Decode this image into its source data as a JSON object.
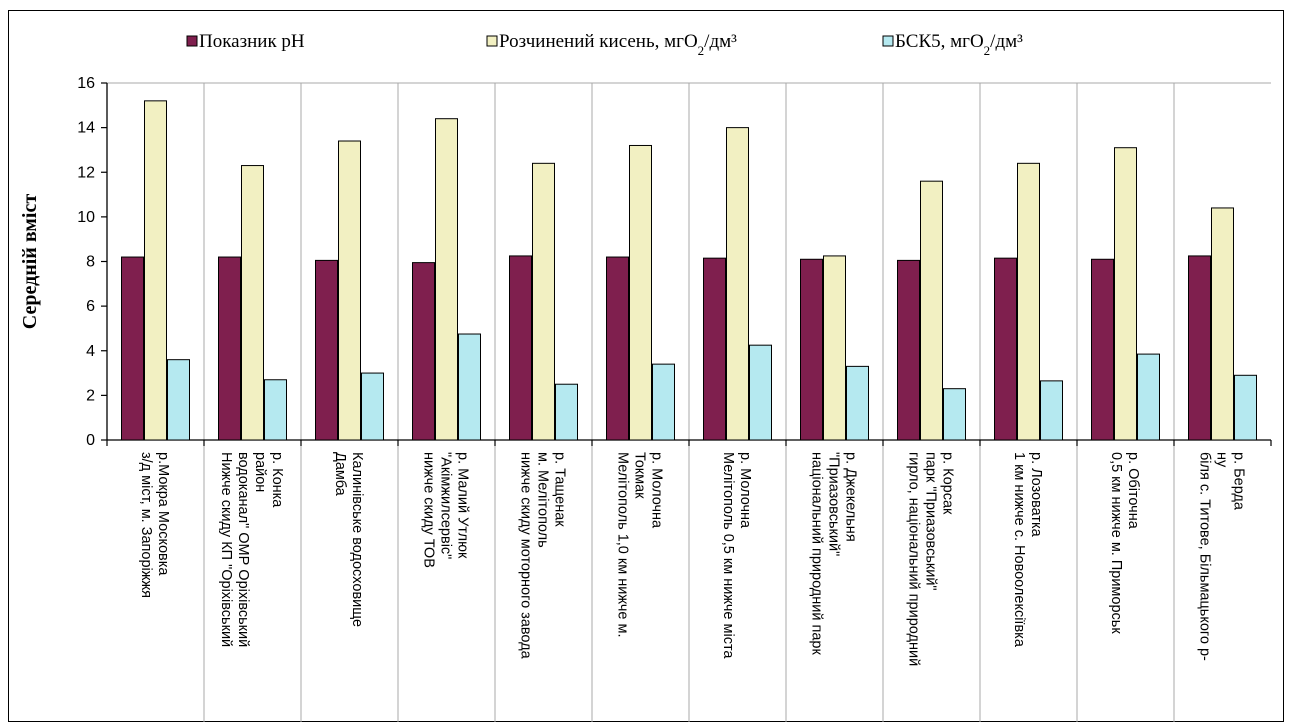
{
  "chart_data": {
    "type": "bar",
    "ylabel": "Середній вміст",
    "ylim": [
      0,
      16
    ],
    "yticks": [
      "0",
      "2",
      "4",
      "6",
      "8",
      "10",
      "12",
      "14",
      "16"
    ],
    "grid": false,
    "legend_position": "top",
    "categories": [
      [
        "з/д міст, м. Запоріжжя",
        "р.Мокра Московка"
      ],
      [
        "Нижче скиду КП \"Оріхівський",
        "водоканал\" ОМР Оріхівський",
        "район",
        "р. Конка"
      ],
      [
        "Дамба",
        "Калинівське водосховище"
      ],
      [
        "нижче скиду ТОВ",
        "\"Акімжилсервіс\"",
        "р. Малий Утлюк"
      ],
      [
        "нижче скиду моторного завода",
        "м. Мелітополь",
        "р. Тащенак"
      ],
      [
        "Мелітополь 1,0 км нижче м.",
        "Токмак",
        "р. Молочна"
      ],
      [
        "Мелітополь 0,5 км нижче міста",
        "р. Молочна"
      ],
      [
        "національний природний парк",
        "\"Приазовський\"",
        "р. Джекельня"
      ],
      [
        "гирло, національний природний",
        "парк \"Приазовський\"",
        "р. Корсак"
      ],
      [
        "1 км нижче с. Новоолексіївка",
        "р. Лозоватка"
      ],
      [
        "0,5 км нижче м. Приморськ",
        "р. Обіточна"
      ],
      [
        "біля с. Титове, Більмацького р-",
        "ну",
        "р. Берда"
      ]
    ],
    "series": [
      {
        "name": "Показник рН",
        "legend_main": "Показник рН",
        "legend_sub": "",
        "legend_tail": "",
        "color": "#7f1f4e",
        "values": [
          8.2,
          8.2,
          8.05,
          7.95,
          8.25,
          8.2,
          8.15,
          8.1,
          8.05,
          8.15,
          8.1,
          8.25
        ]
      },
      {
        "name": "Розчинений кисень, мгО2/дм³",
        "legend_main": "Розчинений кисень, мгО",
        "legend_sub": "2",
        "legend_tail": "/дм³",
        "color": "#f2f0c2",
        "values": [
          15.2,
          12.3,
          13.4,
          14.4,
          12.4,
          13.2,
          14.0,
          8.25,
          11.6,
          12.4,
          13.1,
          10.4
        ]
      },
      {
        "name": "БСК5, мгО2/дм³",
        "legend_main": "БСК5,  мгО",
        "legend_sub": "2",
        "legend_tail": "/дм³",
        "color": "#b5e9f0",
        "values": [
          3.6,
          2.7,
          3.0,
          4.75,
          2.5,
          3.4,
          4.25,
          3.3,
          2.3,
          2.65,
          3.85,
          2.9
        ]
      }
    ]
  }
}
